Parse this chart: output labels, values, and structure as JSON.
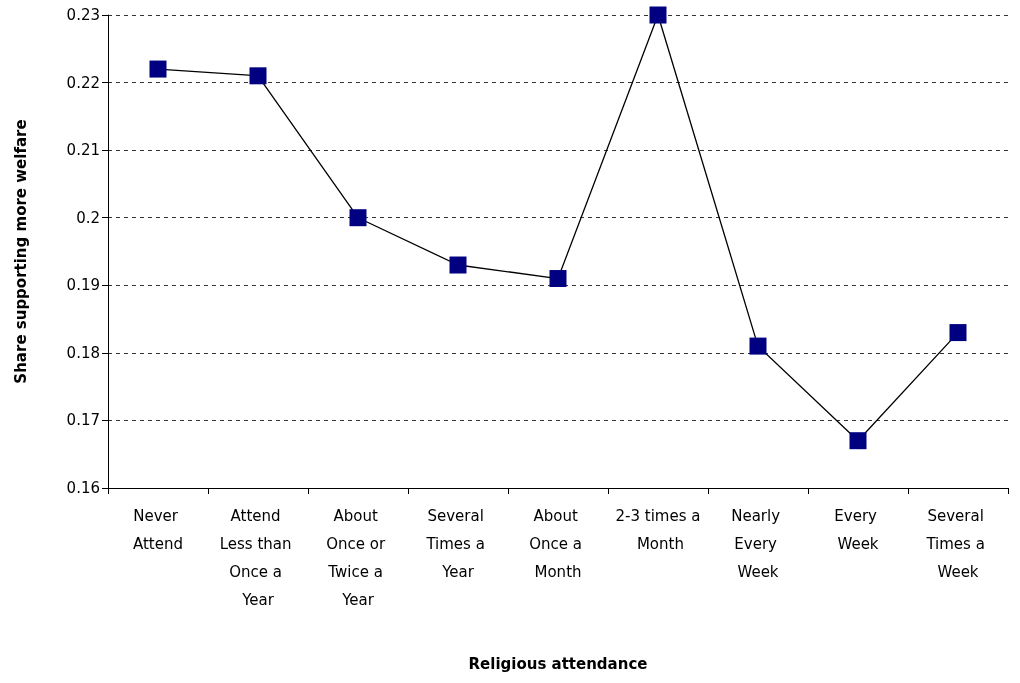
{
  "chart_data": {
    "type": "line",
    "xlabel": "Religious attendance",
    "ylabel": "Share supporting more welfare",
    "categories": [
      "Never Attend",
      "Attend Less than Once a Year",
      "About Once or Twice a Year",
      "Several Times a Year",
      "About Once a Month",
      "2-3 times a Month",
      "Nearly Every Week",
      "Every Week",
      "Several Times a Week"
    ],
    "series": [
      {
        "color": "#000080",
        "values": [
          0.222,
          0.221,
          0.2,
          0.193,
          0.191,
          0.23,
          0.181,
          0.167,
          0.183
        ]
      }
    ],
    "ylim": [
      0.16,
      0.23
    ],
    "yticks": [
      0.16,
      0.17,
      0.18,
      0.19,
      0.2,
      0.21,
      0.22,
      0.23
    ],
    "grid": "y",
    "marker": "square",
    "line_style": "solid"
  }
}
